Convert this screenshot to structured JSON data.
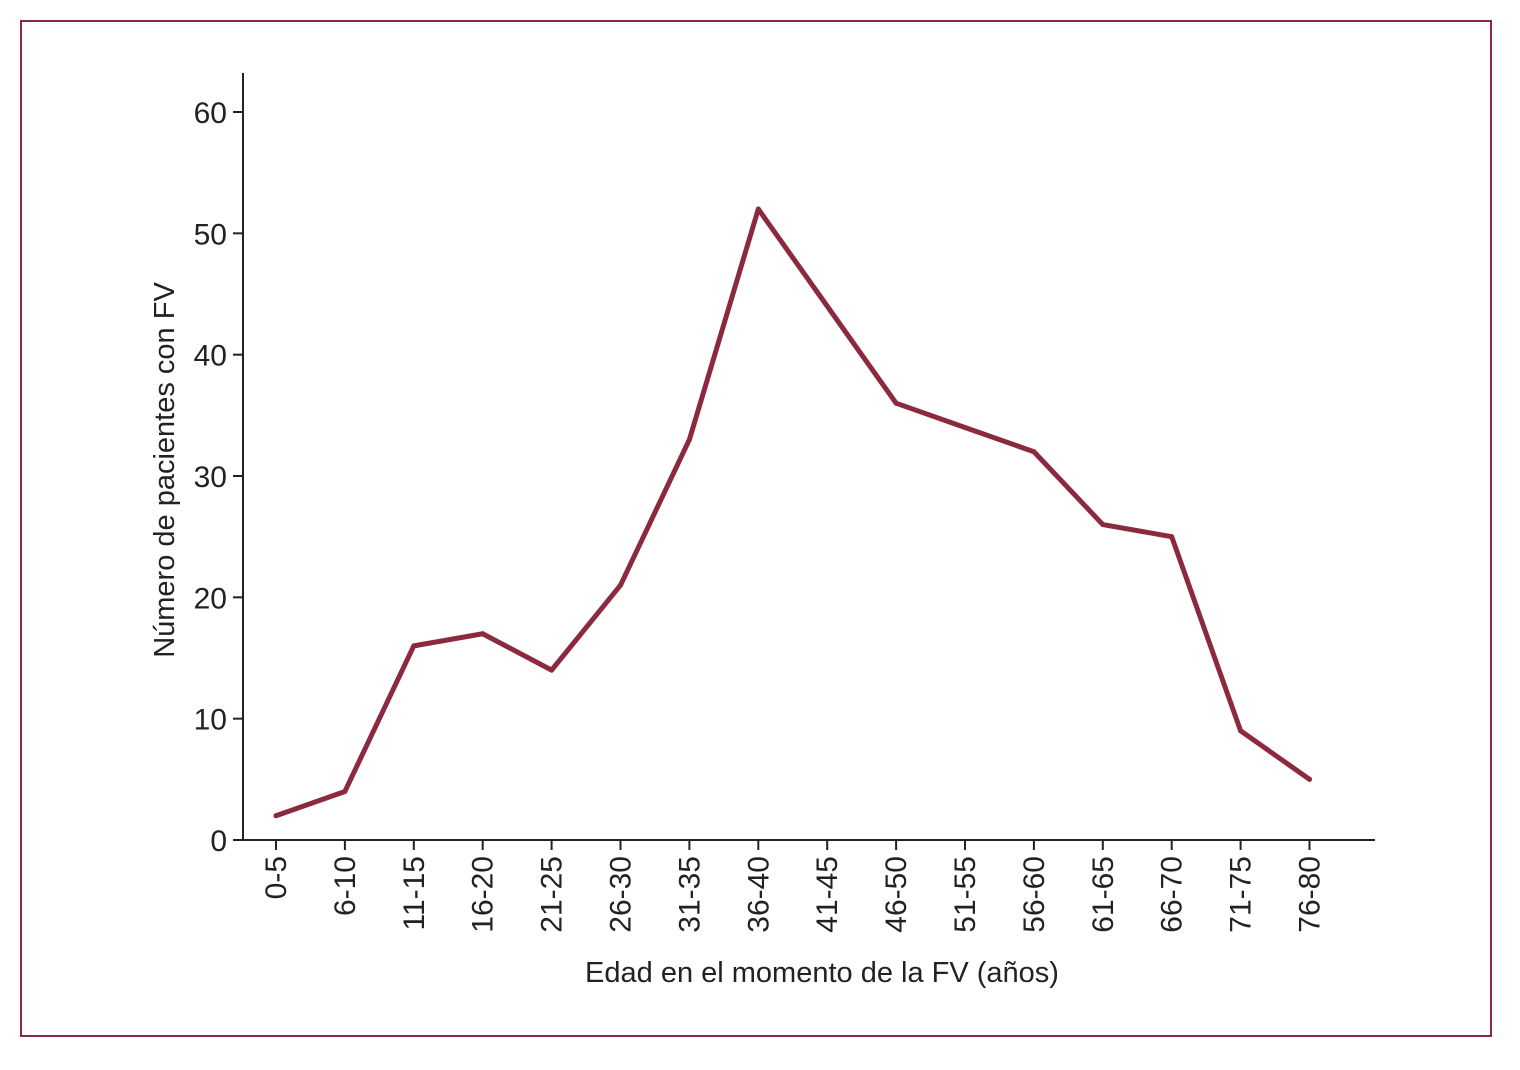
{
  "colors": {
    "line": "#8b2a3e",
    "frame": "#8b2a3e",
    "axis": "#222222",
    "text": "#222222"
  },
  "chart_data": {
    "type": "line",
    "xlabel": "Edad en el momento de la FV (años)",
    "ylabel": "Número de pacientes con FV",
    "ylim": [
      0,
      60
    ],
    "yticks": [
      0,
      10,
      20,
      30,
      40,
      50,
      60
    ],
    "grid": false,
    "categories": [
      "0-5",
      "6-10",
      "11-15",
      "16-20",
      "21-25",
      "26-30",
      "31-35",
      "36-40",
      "41-45",
      "46-50",
      "51-55",
      "56-60",
      "61-65",
      "66-70",
      "71-75",
      "76-80"
    ],
    "series": [
      {
        "values": [
          2,
          4,
          16,
          17,
          14,
          21,
          33,
          52,
          44,
          36,
          34,
          32,
          26,
          25,
          9,
          5
        ]
      }
    ]
  }
}
